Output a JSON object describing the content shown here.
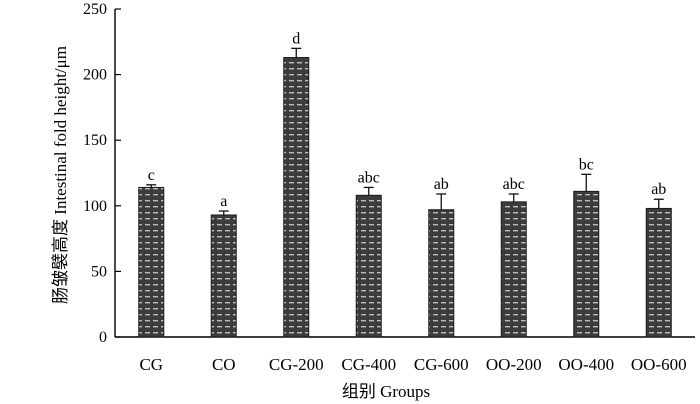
{
  "chart_data": {
    "type": "bar",
    "title": "",
    "xlabel": "组别  Groups",
    "ylabel": "肠皱襞高度  Intestinal fold height/μm",
    "ylim": [
      0,
      250
    ],
    "yticks": [
      "0",
      "50",
      "100",
      "150",
      "200",
      "250"
    ],
    "grid": false,
    "legend": "none",
    "bar_color": "#3a3a3a",
    "categories": [
      "CG",
      "CO",
      "CG-200",
      "CG-400",
      "CG-600",
      "OO-200",
      "OO-400",
      "OO-600"
    ],
    "values": [
      114,
      93,
      213,
      108,
      97,
      103,
      111,
      98
    ],
    "errors": [
      2,
      3,
      7,
      6,
      12,
      6,
      13,
      7
    ],
    "significance_labels": [
      "c",
      "a",
      "d",
      "abc",
      "ab",
      "abc",
      "bc",
      "ab"
    ]
  }
}
